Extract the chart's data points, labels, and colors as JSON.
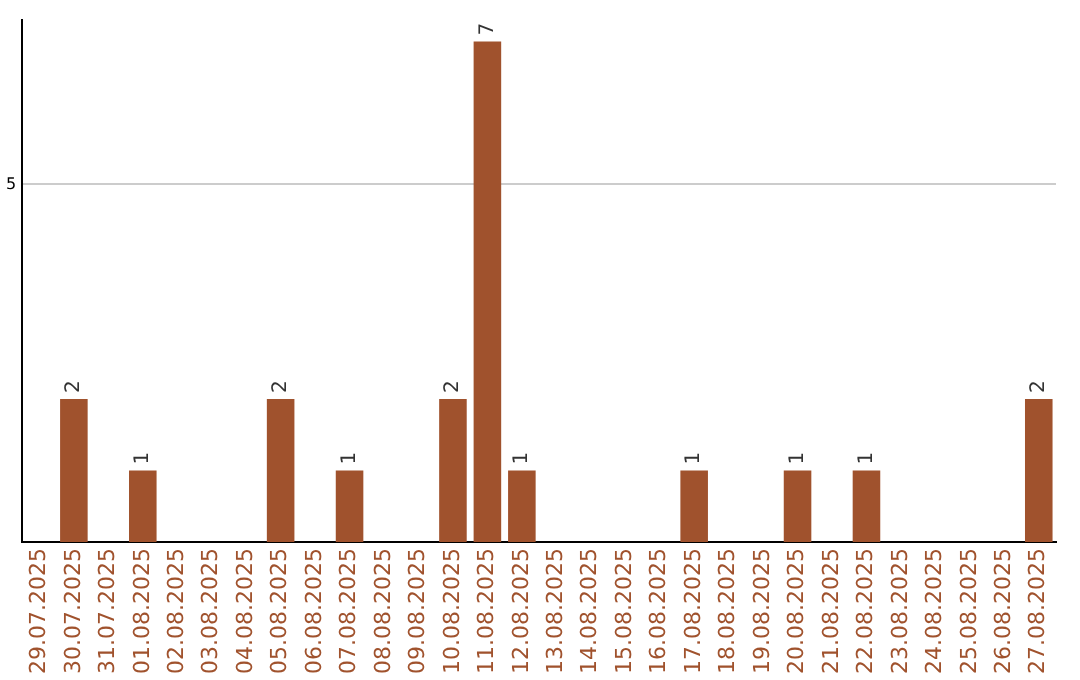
{
  "chart_data": {
    "type": "bar",
    "categories": [
      "29.07.2025",
      "30.07.2025",
      "31.07.2025",
      "01.08.2025",
      "02.08.2025",
      "03.08.2025",
      "04.08.2025",
      "05.08.2025",
      "06.08.2025",
      "07.08.2025",
      "08.08.2025",
      "09.08.2025",
      "10.08.2025",
      "11.08.2025",
      "12.08.2025",
      "13.08.2025",
      "14.08.2025",
      "15.08.2025",
      "16.08.2025",
      "17.08.2025",
      "18.08.2025",
      "19.08.2025",
      "20.08.2025",
      "21.08.2025",
      "22.08.2025",
      "23.08.2025",
      "24.08.2025",
      "25.08.2025",
      "26.08.2025",
      "27.08.2025"
    ],
    "values": [
      0,
      2,
      0,
      1,
      0,
      0,
      0,
      2,
      0,
      1,
      0,
      0,
      2,
      7,
      1,
      0,
      0,
      0,
      0,
      1,
      0,
      0,
      1,
      0,
      1,
      0,
      0,
      0,
      0,
      2
    ],
    "value_labels": [
      null,
      "2",
      null,
      "1",
      null,
      null,
      null,
      "2",
      null,
      "1",
      null,
      null,
      "2",
      "7",
      "1",
      null,
      null,
      null,
      null,
      "1",
      null,
      null,
      "1",
      null,
      "1",
      null,
      null,
      null,
      null,
      "2"
    ],
    "color": "#a0522d",
    "ylim": [
      0,
      7.3
    ],
    "yticks": [
      5
    ],
    "grid": "y",
    "legend": false
  }
}
